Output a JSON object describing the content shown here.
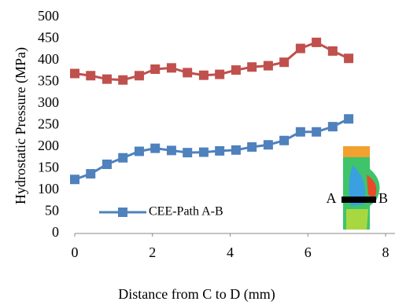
{
  "chart_data": {
    "type": "line",
    "x_label": "Distance from C to D (mm)",
    "y_label": "Hydrostatic Pressure (MPa)",
    "x": [
      0,
      0.41,
      0.83,
      1.24,
      1.66,
      2.07,
      2.49,
      2.9,
      3.32,
      3.73,
      4.15,
      4.56,
      4.98,
      5.39,
      5.81,
      6.22,
      6.64,
      7.05
    ],
    "series": [
      {
        "color": "#c0504d",
        "values": [
          370,
          365,
          357,
          355,
          365,
          380,
          383,
          372,
          366,
          368,
          378,
          385,
          388,
          396,
          428,
          442,
          422,
          405
        ]
      },
      {
        "name": "CEE-Path A-B",
        "color": "#4f81bd",
        "values": [
          125,
          138,
          160,
          175,
          190,
          197,
          192,
          187,
          188,
          191,
          193,
          200,
          205,
          215,
          235,
          235,
          247,
          265
        ]
      }
    ],
    "xlim": [
      0,
      8
    ],
    "xticks": [
      0,
      2,
      4,
      6,
      8
    ],
    "ylim": [
      0,
      500
    ],
    "yticks": [
      0,
      50,
      100,
      150,
      200,
      250,
      300,
      350,
      400,
      450,
      500
    ],
    "annotations": [
      "A",
      "B"
    ]
  }
}
